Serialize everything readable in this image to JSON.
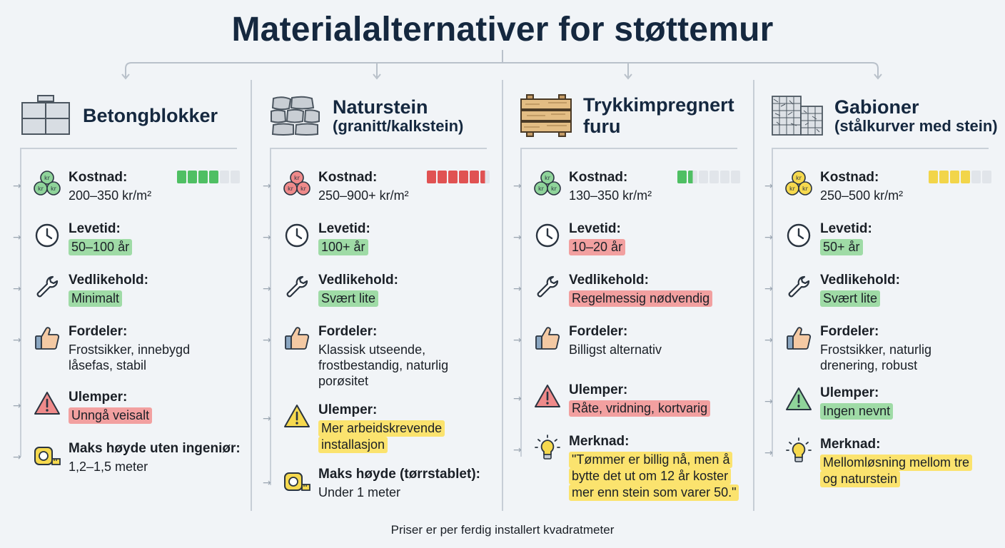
{
  "title": "Materialalternativer for støttemur",
  "footer": "Priser er per ferdig installert kvadratmeter",
  "colors": {
    "green": "#9fdba6",
    "red": "#f2a0a0",
    "yellow": "#fbe36e",
    "rating_empty": "#e1e5ea"
  },
  "columns": [
    {
      "title": "Betongblokker",
      "subtitle": "",
      "icon": "concrete-blocks-icon",
      "cost_rating": {
        "filled": 4,
        "total": 6,
        "color": "#4fbf63"
      },
      "items": [
        {
          "label": "Kostnad:",
          "value": "200–350 kr/m²",
          "icon": "coins-icon",
          "highlight": ""
        },
        {
          "label": "Levetid:",
          "value": "50–100 år",
          "icon": "clock-icon",
          "highlight": "green"
        },
        {
          "label": "Vedlikehold:",
          "value": "Minimalt",
          "icon": "wrench-icon",
          "highlight": "green"
        },
        {
          "label": "Fordeler:",
          "value": "Frostsikker, innebygd\nlåsefas, stabil",
          "icon": "thumbs-up-icon",
          "highlight": ""
        },
        {
          "label": "Ulemper:",
          "value": "Unngå veisalt",
          "icon": "warning-icon",
          "highlight": "red"
        },
        {
          "label": "Maks høyde uten ingeniør:",
          "value": "1,2–1,5 meter",
          "icon": "tape-measure-icon",
          "highlight": ""
        }
      ]
    },
    {
      "title": "Naturstein",
      "subtitle": "(granitt/kalkstein)",
      "icon": "stone-wall-icon",
      "cost_rating": {
        "filled": 5.5,
        "total": 6,
        "color": "#e05252"
      },
      "items": [
        {
          "label": "Kostnad:",
          "value": "250–900+ kr/m²",
          "icon": "coins-icon",
          "highlight": ""
        },
        {
          "label": "Levetid:",
          "value": "100+ år",
          "icon": "clock-icon",
          "highlight": "green"
        },
        {
          "label": "Vedlikehold:",
          "value": "Svært lite",
          "icon": "wrench-icon",
          "highlight": "green"
        },
        {
          "label": "Fordeler:",
          "value": "Klassisk utseende,\nfrostbestandig, naturlig\nporøsitet",
          "icon": "thumbs-up-icon",
          "highlight": ""
        },
        {
          "label": "Ulemper:",
          "value": "Mer arbeidskrevende\ninstallasjon",
          "icon": "warning-icon",
          "highlight": "yellow"
        },
        {
          "label": "Maks høyde (tørrstablet):",
          "value": "Under 1 meter",
          "icon": "tape-measure-icon",
          "highlight": ""
        }
      ]
    },
    {
      "title": "Trykkimpregnert",
      "subtitle": "furu",
      "icon": "timber-icon",
      "cost_rating": {
        "filled": 1.5,
        "total": 6,
        "color": "#4fbf63"
      },
      "items": [
        {
          "label": "Kostnad:",
          "value": "130–350 kr/m²",
          "icon": "coins-icon",
          "highlight": ""
        },
        {
          "label": "Levetid:",
          "value": "10–20 år",
          "icon": "clock-icon",
          "highlight": "red"
        },
        {
          "label": "Vedlikehold:",
          "value": "Regelmessig nødvendig",
          "icon": "wrench-icon",
          "highlight": "red"
        },
        {
          "label": "Fordeler:",
          "value": "Billigst alternativ",
          "icon": "thumbs-up-icon",
          "highlight": ""
        },
        {
          "label": "Ulemper:",
          "value": "Råte, vridning, kortvarig",
          "icon": "warning-icon",
          "highlight": "red"
        },
        {
          "label": "Merknad:",
          "value": "\"Tømmer er billig nå, men å\nbytte det ut om 12 år koster\nmer enn stein som varer 50.\"",
          "icon": "lightbulb-icon",
          "highlight": "yellow"
        }
      ]
    },
    {
      "title": "Gabioner",
      "subtitle": "(stålkurver med stein)",
      "icon": "gabion-icon",
      "cost_rating": {
        "filled": 4,
        "total": 6,
        "color": "#f2d54a"
      },
      "items": [
        {
          "label": "Kostnad:",
          "value": "250–500 kr/m²",
          "icon": "coins-icon",
          "highlight": ""
        },
        {
          "label": "Levetid:",
          "value": "50+ år",
          "icon": "clock-icon",
          "highlight": "green"
        },
        {
          "label": "Vedlikehold:",
          "value": "Svært lite",
          "icon": "wrench-icon",
          "highlight": "green"
        },
        {
          "label": "Fordeler:",
          "value": "Frostsikker, naturlig\ndrenering, robust",
          "icon": "thumbs-up-icon",
          "highlight": ""
        },
        {
          "label": "Ulemper:",
          "value": "Ingen nevnt",
          "icon": "warning-icon",
          "highlight": "green"
        },
        {
          "label": "Merknad:",
          "value": "Mellomløsning mellom tre\nog naturstein",
          "icon": "lightbulb-icon",
          "highlight": "yellow"
        }
      ]
    }
  ]
}
